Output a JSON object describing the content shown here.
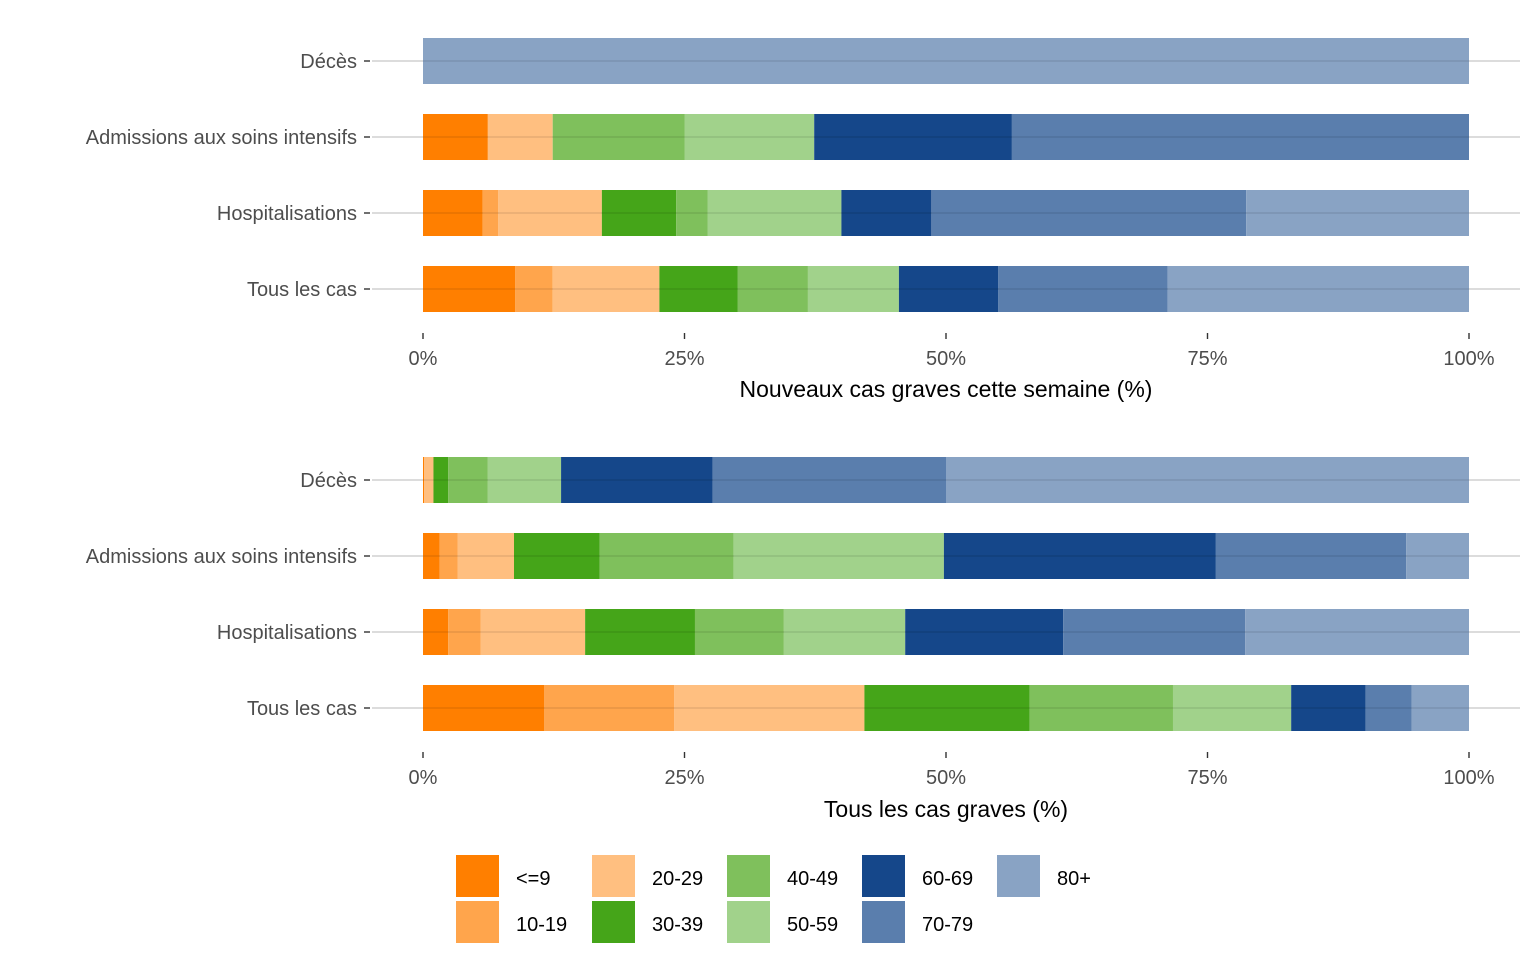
{
  "chart_data": [
    {
      "type": "bar",
      "orientation": "horizontal",
      "stacked": true,
      "title": "",
      "xlabel": "Nouveaux cas graves cette semaine (%)",
      "ylabel": "",
      "xlim": [
        0,
        100
      ],
      "xticks": [
        "0%",
        "25%",
        "50%",
        "75%",
        "100%"
      ],
      "grid": "horizontal lines at categories",
      "categories": [
        "Tous les cas",
        "Hospitalisations",
        "Admissions aux soins intensifs",
        "Décès"
      ],
      "series": [
        {
          "name": "<=9",
          "values": [
            8.8,
            5.7,
            6.2,
            0
          ]
        },
        {
          "name": "10-19",
          "values": [
            3.6,
            1.5,
            0,
            0
          ]
        },
        {
          "name": "20-29",
          "values": [
            10.2,
            9.9,
            6.2,
            0
          ]
        },
        {
          "name": "30-39",
          "values": [
            7.5,
            7.1,
            0,
            0
          ]
        },
        {
          "name": "40-49",
          "values": [
            6.7,
            3.0,
            12.6,
            0
          ]
        },
        {
          "name": "50-59",
          "values": [
            8.7,
            12.8,
            12.4,
            0
          ]
        },
        {
          "name": "60-69",
          "values": [
            9.5,
            8.6,
            18.9,
            0
          ]
        },
        {
          "name": "70-79",
          "values": [
            16.2,
            30.1,
            43.7,
            0
          ]
        },
        {
          "name": "80+",
          "values": [
            28.8,
            21.3,
            0,
            100
          ]
        }
      ]
    },
    {
      "type": "bar",
      "orientation": "horizontal",
      "stacked": true,
      "title": "",
      "xlabel": "Tous les cas graves (%)",
      "ylabel": "",
      "xlim": [
        0,
        100
      ],
      "xticks": [
        "0%",
        "25%",
        "50%",
        "75%",
        "100%"
      ],
      "grid": "horizontal lines at categories",
      "categories": [
        "Tous les cas",
        "Hospitalisations",
        "Admissions aux soins intensifs",
        "Décès"
      ],
      "series": [
        {
          "name": "<=9",
          "values": [
            11.6,
            2.4,
            1.6,
            0.1
          ]
        },
        {
          "name": "10-19",
          "values": [
            12.4,
            3.1,
            1.7,
            0
          ]
        },
        {
          "name": "20-29",
          "values": [
            18.2,
            10.0,
            5.4,
            0.9
          ]
        },
        {
          "name": "30-39",
          "values": [
            15.8,
            10.5,
            8.2,
            1.4
          ]
        },
        {
          "name": "40-49",
          "values": [
            13.7,
            8.5,
            12.8,
            3.8
          ]
        },
        {
          "name": "50-59",
          "values": [
            11.3,
            11.6,
            20.1,
            7.0
          ]
        },
        {
          "name": "60-69",
          "values": [
            7.1,
            15.1,
            26.0,
            14.5
          ]
        },
        {
          "name": "70-79",
          "values": [
            4.4,
            17.4,
            18.2,
            22.3
          ]
        },
        {
          "name": "80+",
          "values": [
            5.5,
            21.4,
            6.0,
            50.0
          ]
        }
      ]
    }
  ],
  "legend": {
    "position": "bottom",
    "items": [
      {
        "label": "<=9",
        "color": "#FF7F00"
      },
      {
        "label": "10-19",
        "color": "#FFA54C"
      },
      {
        "label": "20-29",
        "color": "#FFBF80"
      },
      {
        "label": "30-39",
        "color": "#45A519"
      },
      {
        "label": "40-49",
        "color": "#7FC05C"
      },
      {
        "label": "50-59",
        "color": "#A1D28B"
      },
      {
        "label": "60-69",
        "color": "#15478A"
      },
      {
        "label": "70-79",
        "color": "#5A7EAD"
      },
      {
        "label": "80+",
        "color": "#89A3C4"
      }
    ]
  }
}
